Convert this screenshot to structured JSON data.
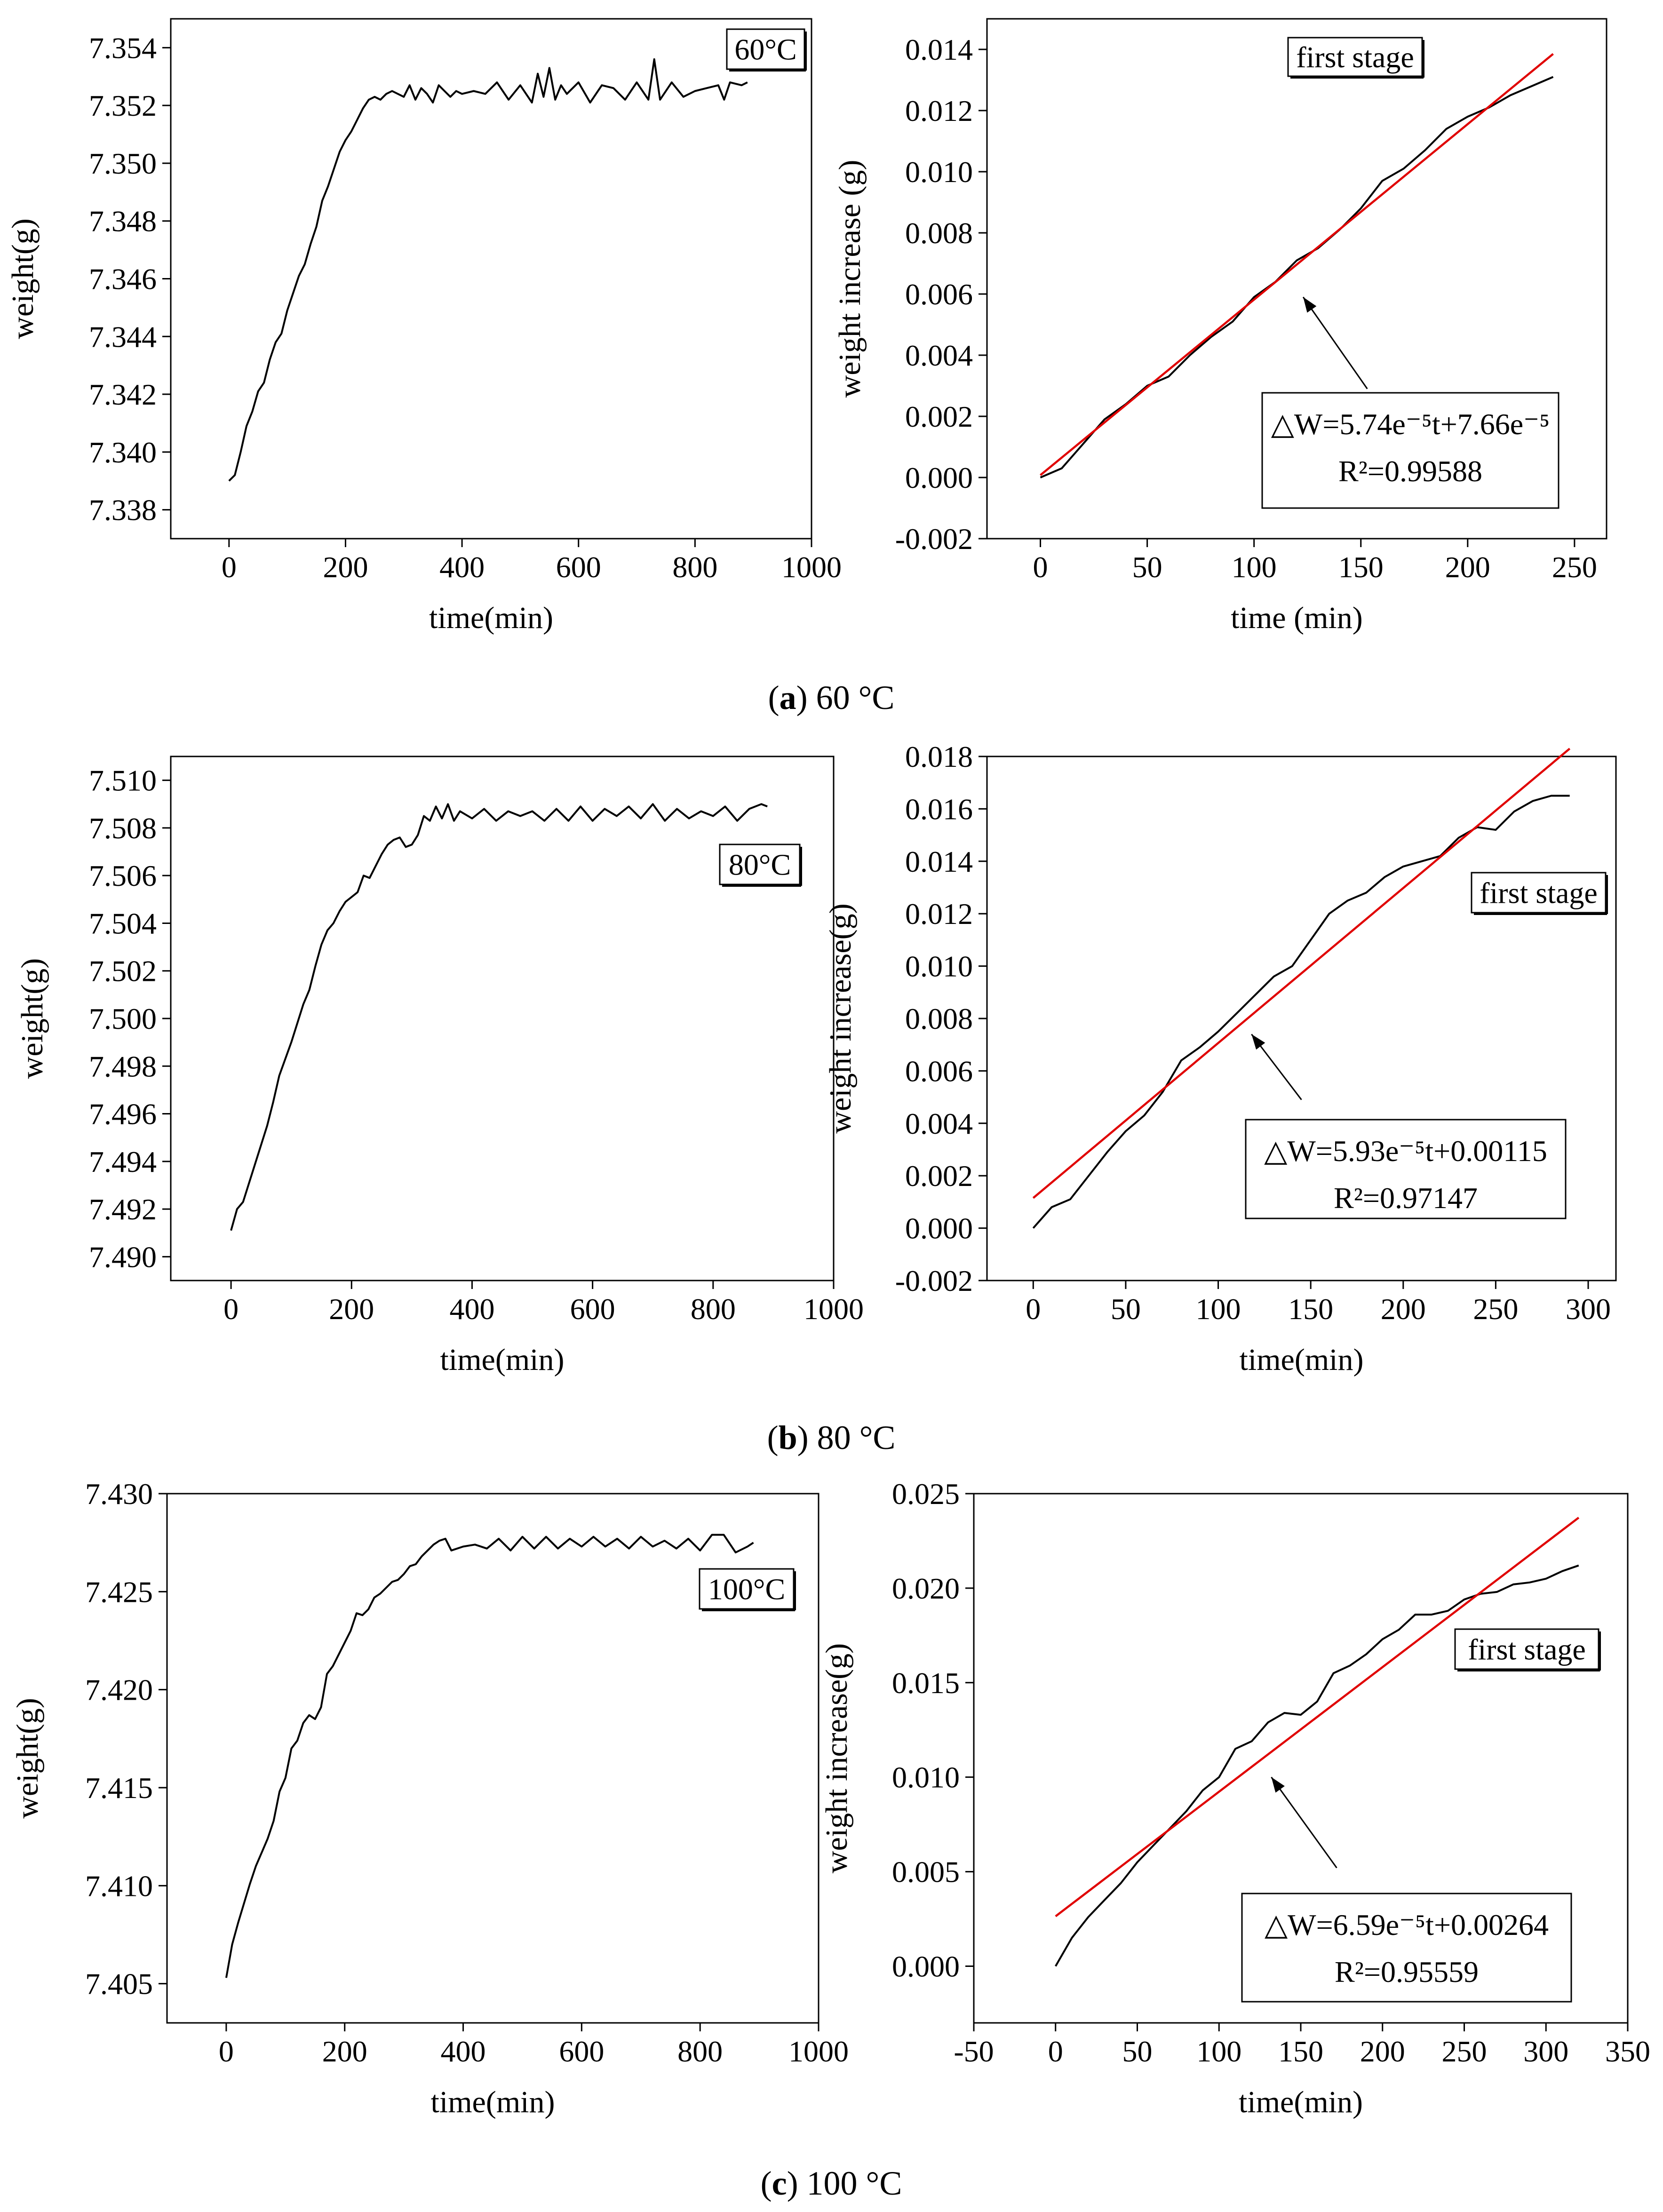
{
  "figure": {
    "captions": [
      {
        "letter": "a",
        "text": " 60 °C"
      },
      {
        "letter": "b",
        "text": " 80 °C"
      },
      {
        "letter": "c",
        "text": " 100 °C"
      }
    ]
  },
  "colors": {
    "data_line": "#000000",
    "fit_line": "#e00000"
  },
  "chart_data": [
    {
      "id": "a-left",
      "type": "line",
      "title": "",
      "xlabel": "time(min)",
      "ylabel": "weight(g)",
      "xlim": [
        -100,
        1000
      ],
      "ylim": [
        7.337,
        7.355
      ],
      "xticks": [
        0,
        200,
        400,
        600,
        800,
        1000
      ],
      "xtick_labels": [
        "0",
        "200",
        "400",
        "600",
        "800",
        "1000"
      ],
      "yticks": [
        7.338,
        7.34,
        7.342,
        7.344,
        7.346,
        7.348,
        7.35,
        7.352,
        7.354
      ],
      "ytick_labels": [
        "7.338",
        "7.340",
        "7.342",
        "7.344",
        "7.346",
        "7.348",
        "7.350",
        "7.352",
        "7.354"
      ],
      "legend_box": "60°C",
      "legend_placement": "top-right",
      "series": [
        {
          "name": "weight",
          "kind": "data",
          "x": [
            0,
            10,
            20,
            30,
            40,
            50,
            60,
            70,
            80,
            90,
            100,
            110,
            120,
            130,
            140,
            150,
            160,
            170,
            180,
            190,
            200,
            210,
            220,
            230,
            240,
            250,
            260,
            270,
            280,
            300,
            310,
            320,
            330,
            340,
            350,
            360,
            370,
            380,
            390,
            400,
            420,
            440,
            460,
            480,
            500,
            520,
            530,
            540,
            550,
            560,
            570,
            580,
            600,
            620,
            640,
            660,
            680,
            700,
            720,
            730,
            740,
            760,
            780,
            800,
            820,
            840,
            850,
            860,
            880,
            890
          ],
          "y": [
            7.339,
            7.3392,
            7.34,
            7.3409,
            7.3414,
            7.3421,
            7.3424,
            7.3432,
            7.3438,
            7.3441,
            7.3449,
            7.3455,
            7.3461,
            7.3465,
            7.3472,
            7.3478,
            7.3487,
            7.3492,
            7.3498,
            7.3504,
            7.3508,
            7.3511,
            7.3515,
            7.3519,
            7.3522,
            7.3523,
            7.3522,
            7.3524,
            7.3525,
            7.3523,
            7.3527,
            7.3522,
            7.3526,
            7.3524,
            7.3521,
            7.3527,
            7.3525,
            7.3523,
            7.3525,
            7.3524,
            7.3525,
            7.3524,
            7.3528,
            7.3522,
            7.3527,
            7.3521,
            7.3531,
            7.3523,
            7.3533,
            7.3522,
            7.3527,
            7.3524,
            7.3528,
            7.3521,
            7.3527,
            7.3526,
            7.3522,
            7.3528,
            7.3522,
            7.3536,
            7.3522,
            7.3528,
            7.3523,
            7.3525,
            7.3526,
            7.3527,
            7.3522,
            7.3528,
            7.3527,
            7.3528
          ]
        }
      ],
      "annotations": []
    },
    {
      "id": "a-right",
      "type": "line",
      "title": "",
      "xlabel": "time (min)",
      "ylabel": "weight increase (g)",
      "xlim": [
        -25,
        265
      ],
      "ylim": [
        -0.002,
        0.015
      ],
      "xticks": [
        0,
        50,
        100,
        150,
        200,
        250
      ],
      "xtick_labels": [
        "0",
        "50",
        "100",
        "150",
        "200",
        "250"
      ],
      "yticks": [
        -0.002,
        0.0,
        0.002,
        0.004,
        0.006,
        0.008,
        0.01,
        0.012,
        0.014
      ],
      "ytick_labels": [
        "-0.002",
        "0.000",
        "0.002",
        "0.004",
        "0.006",
        "0.008",
        "0.010",
        "0.012",
        "0.014"
      ],
      "legend_box": "first stage",
      "legend_placement": "top-center",
      "series": [
        {
          "name": "weight increase",
          "kind": "data",
          "x": [
            0,
            10,
            20,
            30,
            40,
            50,
            60,
            70,
            80,
            90,
            100,
            110,
            120,
            130,
            140,
            150,
            160,
            170,
            180,
            190,
            200,
            210,
            220,
            230,
            240
          ],
          "y": [
            0.0,
            0.0003,
            0.0011,
            0.0019,
            0.0024,
            0.003,
            0.0033,
            0.004,
            0.0046,
            0.0051,
            0.0059,
            0.0064,
            0.0071,
            0.0075,
            0.0081,
            0.0088,
            0.0097,
            0.0101,
            0.0107,
            0.0114,
            0.0118,
            0.0121,
            0.0125,
            0.0128,
            0.0131
          ]
        },
        {
          "name": "linear fit",
          "kind": "fit",
          "x": [
            0,
            240
          ],
          "y": [
            7.66e-05,
            0.0138526
          ]
        }
      ],
      "annotations": [
        {
          "lines": [
            "△W=5.74e⁻⁵t+7.66e⁻⁵",
            "R²=0.99588"
          ],
          "arrow_from": [
            153,
            0.0029
          ],
          "arrow_to": [
            123,
            0.0059
          ]
        }
      ]
    },
    {
      "id": "b-left",
      "type": "line",
      "title": "",
      "xlabel": "time(min)",
      "ylabel": "weight(g)",
      "xlim": [
        -100,
        1000
      ],
      "ylim": [
        7.489,
        7.511
      ],
      "xticks": [
        0,
        200,
        400,
        600,
        800,
        1000
      ],
      "xtick_labels": [
        "0",
        "200",
        "400",
        "600",
        "800",
        "1000"
      ],
      "yticks": [
        7.49,
        7.492,
        7.494,
        7.496,
        7.498,
        7.5,
        7.502,
        7.504,
        7.506,
        7.508,
        7.51
      ],
      "ytick_labels": [
        "7.490",
        "7.492",
        "7.494",
        "7.496",
        "7.498",
        "7.500",
        "7.502",
        "7.504",
        "7.506",
        "7.508",
        "7.510"
      ],
      "legend_box": "80°C",
      "legend_placement": "right",
      "series": [
        {
          "name": "weight",
          "kind": "data",
          "x": [
            0,
            10,
            20,
            30,
            40,
            50,
            60,
            70,
            80,
            90,
            100,
            110,
            120,
            130,
            140,
            150,
            160,
            170,
            180,
            190,
            200,
            210,
            220,
            230,
            240,
            250,
            260,
            270,
            280,
            290,
            300,
            310,
            320,
            330,
            340,
            350,
            360,
            370,
            380,
            400,
            420,
            440,
            460,
            480,
            500,
            520,
            540,
            560,
            580,
            600,
            620,
            640,
            660,
            680,
            700,
            720,
            740,
            760,
            780,
            800,
            820,
            840,
            860,
            880,
            890
          ],
          "y": [
            7.4911,
            7.492,
            7.4923,
            7.4931,
            7.4939,
            7.4947,
            7.4955,
            7.4965,
            7.4976,
            7.4983,
            7.499,
            7.4998,
            7.5006,
            7.5012,
            7.5022,
            7.5031,
            7.5037,
            7.504,
            7.5045,
            7.5049,
            7.5051,
            7.5053,
            7.506,
            7.5059,
            7.5064,
            7.5069,
            7.5073,
            7.5075,
            7.5076,
            7.5072,
            7.5073,
            7.5077,
            7.5085,
            7.5083,
            7.5089,
            7.5084,
            7.509,
            7.5083,
            7.5087,
            7.5084,
            7.5088,
            7.5083,
            7.5087,
            7.5085,
            7.5087,
            7.5083,
            7.5088,
            7.5083,
            7.5089,
            7.5083,
            7.5088,
            7.5085,
            7.5089,
            7.5084,
            7.509,
            7.5083,
            7.5088,
            7.5084,
            7.5087,
            7.5085,
            7.5089,
            7.5083,
            7.5088,
            7.509,
            7.5089
          ]
        }
      ],
      "annotations": []
    },
    {
      "id": "b-right",
      "type": "line",
      "title": "",
      "xlabel": "time(min)",
      "ylabel": "weight increase(g)",
      "xlim": [
        -25,
        315
      ],
      "ylim": [
        -0.002,
        0.018
      ],
      "xticks": [
        0,
        50,
        100,
        150,
        200,
        250,
        300
      ],
      "xtick_labels": [
        "0",
        "50",
        "100",
        "150",
        "200",
        "250",
        "300"
      ],
      "yticks": [
        -0.002,
        0.0,
        0.002,
        0.004,
        0.006,
        0.008,
        0.01,
        0.012,
        0.014,
        0.016,
        0.018
      ],
      "ytick_labels": [
        "-0.002",
        "0.000",
        "0.002",
        "0.004",
        "0.006",
        "0.008",
        "0.010",
        "0.012",
        "0.014",
        "0.016",
        "0.018"
      ],
      "legend_box": "first stage",
      "legend_placement": "right",
      "series": [
        {
          "name": "weight increase",
          "kind": "data",
          "x": [
            0,
            10,
            20,
            30,
            40,
            50,
            60,
            70,
            80,
            90,
            100,
            110,
            120,
            130,
            140,
            150,
            160,
            170,
            180,
            190,
            200,
            210,
            220,
            230,
            240,
            250,
            260,
            270,
            280,
            290
          ],
          "y": [
            0.0,
            0.0008,
            0.0011,
            0.002,
            0.0029,
            0.0037,
            0.0043,
            0.0052,
            0.0064,
            0.0069,
            0.0075,
            0.0082,
            0.0089,
            0.0096,
            0.01,
            0.011,
            0.012,
            0.0125,
            0.0128,
            0.0134,
            0.0138,
            0.014,
            0.0142,
            0.0149,
            0.0153,
            0.0152,
            0.0159,
            0.0163,
            0.0165,
            0.0165
          ]
        },
        {
          "name": "linear fit",
          "kind": "fit",
          "x": [
            0,
            290
          ],
          "y": [
            0.00115,
            0.0183
          ]
        }
      ],
      "annotations": [
        {
          "lines": [
            "△W=5.93e⁻⁵t+0.00115",
            "R²=0.97147"
          ],
          "arrow_from": [
            145,
            0.0049
          ],
          "arrow_to": [
            118,
            0.0074
          ]
        }
      ]
    },
    {
      "id": "c-left",
      "type": "line",
      "title": "",
      "xlabel": "time(min)",
      "ylabel": "weight(g)",
      "xlim": [
        -100,
        1000
      ],
      "ylim": [
        7.403,
        7.43
      ],
      "xticks": [
        0,
        200,
        400,
        600,
        800,
        1000
      ],
      "xtick_labels": [
        "0",
        "200",
        "400",
        "600",
        "800",
        "1000"
      ],
      "yticks": [
        7.405,
        7.41,
        7.415,
        7.42,
        7.425,
        7.43
      ],
      "ytick_labels": [
        "7.405",
        "7.410",
        "7.415",
        "7.420",
        "7.425",
        "7.430"
      ],
      "legend_box": "100°C",
      "legend_placement": "top-right",
      "series": [
        {
          "name": "weight",
          "kind": "data",
          "x": [
            0,
            10,
            20,
            30,
            40,
            50,
            60,
            70,
            80,
            90,
            100,
            110,
            120,
            130,
            140,
            150,
            160,
            170,
            180,
            190,
            200,
            210,
            220,
            230,
            240,
            250,
            260,
            270,
            280,
            290,
            300,
            310,
            320,
            330,
            340,
            350,
            360,
            370,
            380,
            400,
            420,
            440,
            460,
            480,
            500,
            520,
            540,
            560,
            580,
            600,
            620,
            640,
            660,
            680,
            700,
            720,
            740,
            760,
            780,
            800,
            820,
            840,
            860,
            880,
            890
          ],
          "y": [
            7.4053,
            7.407,
            7.4081,
            7.4091,
            7.4101,
            7.411,
            7.4117,
            7.4124,
            7.4133,
            7.4148,
            7.4155,
            7.417,
            7.4174,
            7.4183,
            7.4187,
            7.4185,
            7.4191,
            7.4208,
            7.4212,
            7.4218,
            7.4224,
            7.423,
            7.4239,
            7.4238,
            7.4241,
            7.4247,
            7.4249,
            7.4252,
            7.4255,
            7.4256,
            7.4259,
            7.4263,
            7.4264,
            7.4268,
            7.4271,
            7.4274,
            7.4276,
            7.4277,
            7.4271,
            7.4273,
            7.4274,
            7.4272,
            7.4277,
            7.4271,
            7.4278,
            7.4272,
            7.4278,
            7.4272,
            7.4277,
            7.4273,
            7.4278,
            7.4273,
            7.4277,
            7.4272,
            7.4278,
            7.4273,
            7.4276,
            7.4272,
            7.4277,
            7.4271,
            7.4279,
            7.4279,
            7.427,
            7.4273,
            7.4275
          ]
        }
      ],
      "annotations": []
    },
    {
      "id": "c-right",
      "type": "line",
      "title": "",
      "xlabel": "time(min)",
      "ylabel": "weight increase(g)",
      "xlim": [
        -50,
        350
      ],
      "ylim": [
        -0.003,
        0.025
      ],
      "xticks": [
        -50,
        0,
        50,
        100,
        150,
        200,
        250,
        300,
        350
      ],
      "xtick_labels": [
        "-50",
        "0",
        "50",
        "100",
        "150",
        "200",
        "250",
        "300",
        "350"
      ],
      "yticks": [
        0.0,
        0.005,
        0.01,
        0.015,
        0.02,
        0.025
      ],
      "ytick_labels": [
        "0.000",
        "0.005",
        "0.010",
        "0.015",
        "0.020",
        "0.025"
      ],
      "legend_box": "first stage",
      "legend_placement": "right",
      "series": [
        {
          "name": "weight increase",
          "kind": "data",
          "x": [
            0,
            10,
            20,
            30,
            40,
            50,
            60,
            70,
            80,
            90,
            100,
            110,
            120,
            130,
            140,
            150,
            160,
            170,
            180,
            190,
            200,
            210,
            220,
            230,
            240,
            250,
            260,
            270,
            280,
            290,
            300,
            310,
            320
          ],
          "y": [
            0.0,
            0.0015,
            0.0026,
            0.0035,
            0.0044,
            0.0055,
            0.0064,
            0.0073,
            0.0082,
            0.0093,
            0.01,
            0.0115,
            0.0119,
            0.0129,
            0.0134,
            0.0133,
            0.014,
            0.0155,
            0.0159,
            0.0165,
            0.0173,
            0.0178,
            0.0186,
            0.0186,
            0.0188,
            0.0194,
            0.0197,
            0.0198,
            0.0202,
            0.0203,
            0.0205,
            0.0209,
            0.0212
          ]
        },
        {
          "name": "linear fit",
          "kind": "fit",
          "x": [
            0,
            320
          ],
          "y": [
            0.00264,
            0.02373
          ]
        }
      ],
      "annotations": [
        {
          "lines": [
            "△W=6.59e⁻⁵t+0.00264",
            "R²=0.95559"
          ],
          "arrow_from": [
            172,
            0.0052
          ],
          "arrow_to": [
            132,
            0.01
          ]
        }
      ]
    }
  ]
}
